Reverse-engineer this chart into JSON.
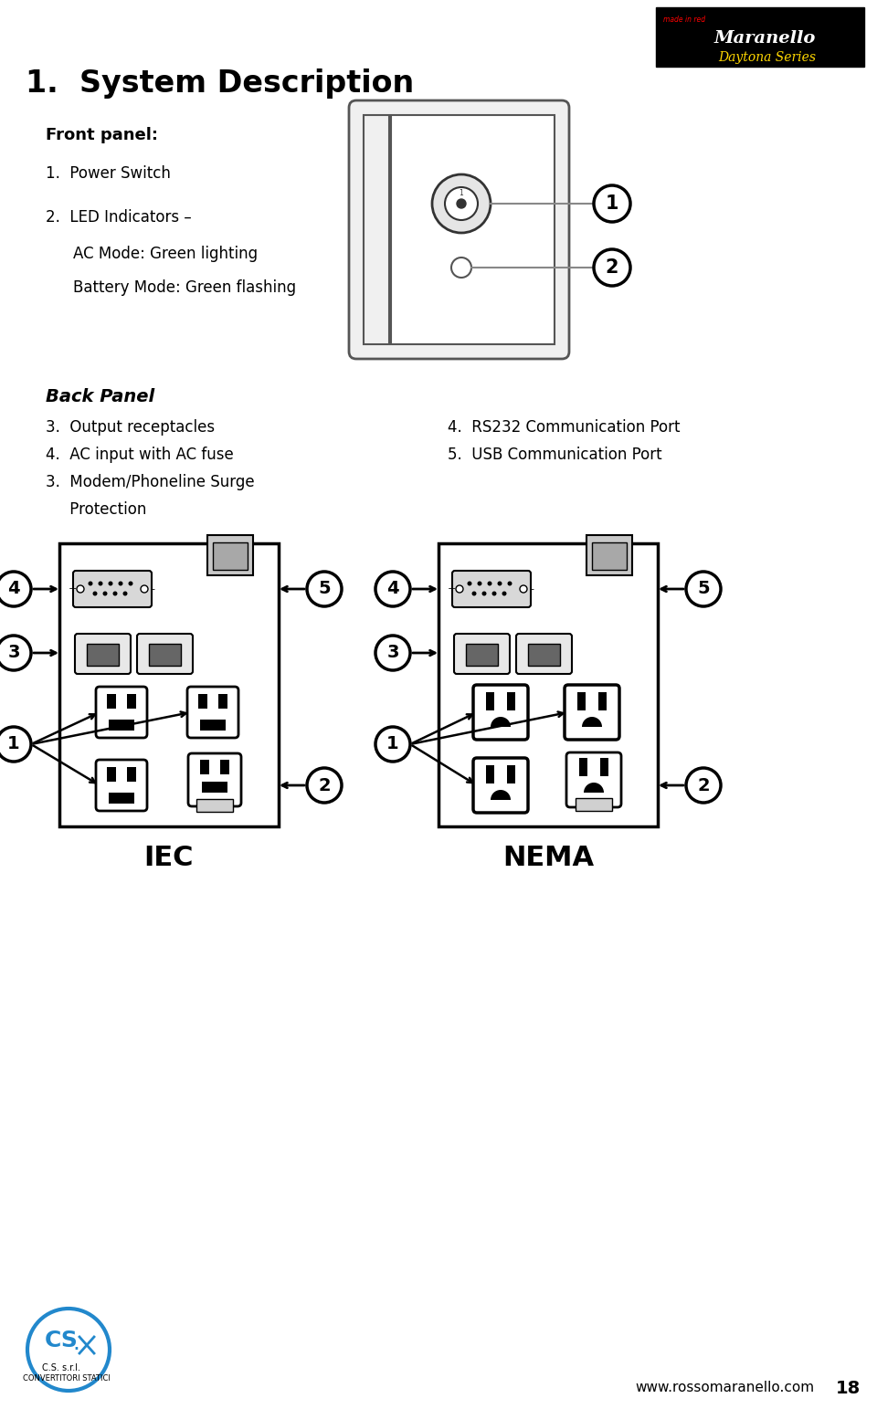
{
  "title": "1.  System Description",
  "bg_color": "#ffffff",
  "front_panel_label": "Front panel:",
  "item1": "1.  Power Switch",
  "item2": "2.  LED Indicators –",
  "item2a": "AC Mode: Green lighting",
  "item2b": "Battery Mode: Green flashing",
  "back_panel_label": "Back Panel",
  "back_l1": "3.  Output receptacles",
  "back_l2": "4.  AC input with AC fuse",
  "back_l3": "3.  Modem/Phoneline Surge",
  "back_l4": "     Protection",
  "back_r1": "4.  RS232 Communication Port",
  "back_r2": "5.  USB Communication Port",
  "label_iec": "IEC",
  "label_nema": "NEMA",
  "website": "www.rossomaranello.com",
  "page_num": "18",
  "logo_text1": "Maranello",
  "logo_text2": "Daytona Series"
}
